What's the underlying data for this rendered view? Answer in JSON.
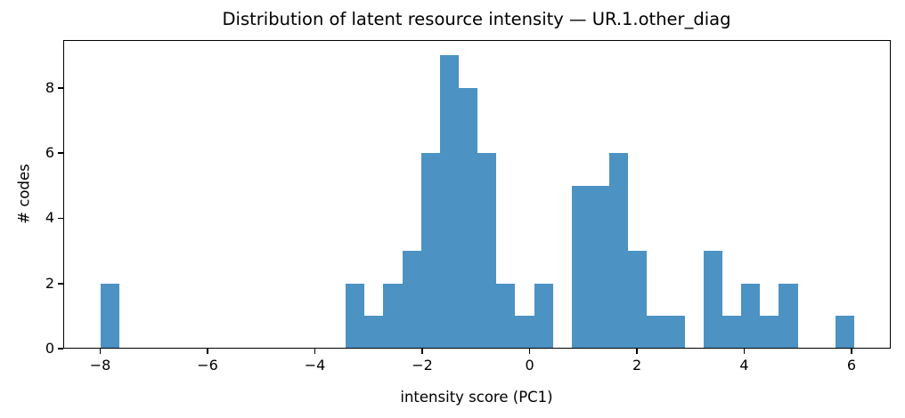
{
  "chart_data": {
    "type": "bar",
    "subtype": "histogram",
    "title": "Distribution of latent resource intensity — UR.1.other_diag",
    "xlabel": "intensity score (PC1)",
    "ylabel": "# codes",
    "bar_color": "#4c92c3",
    "axis_color": "#000000",
    "background_color": "#ffffff",
    "grid": false,
    "legend": false,
    "xlim": [
      -8.69,
      6.73
    ],
    "ylim": [
      0,
      9.47
    ],
    "xticks": [
      -8,
      -6,
      -4,
      -2,
      0,
      2,
      4,
      6
    ],
    "xtick_labels": [
      "−8",
      "−6",
      "−4",
      "−2",
      "0",
      "2",
      "4",
      "6"
    ],
    "yticks": [
      0,
      2,
      4,
      6,
      8
    ],
    "ytick_labels": [
      "0",
      "2",
      "4",
      "6",
      "8"
    ],
    "bin_start": -7.99,
    "bin_width": 0.351,
    "n_bins": 40,
    "counts": [
      2,
      0,
      0,
      0,
      0,
      0,
      0,
      0,
      0,
      0,
      0,
      0,
      0,
      2,
      1,
      2,
      3,
      6,
      9,
      8,
      6,
      2,
      1,
      2,
      0,
      5,
      5,
      6,
      3,
      1,
      1,
      0,
      3,
      1,
      2,
      1,
      2,
      0,
      0,
      1
    ],
    "total_codes": 75
  }
}
